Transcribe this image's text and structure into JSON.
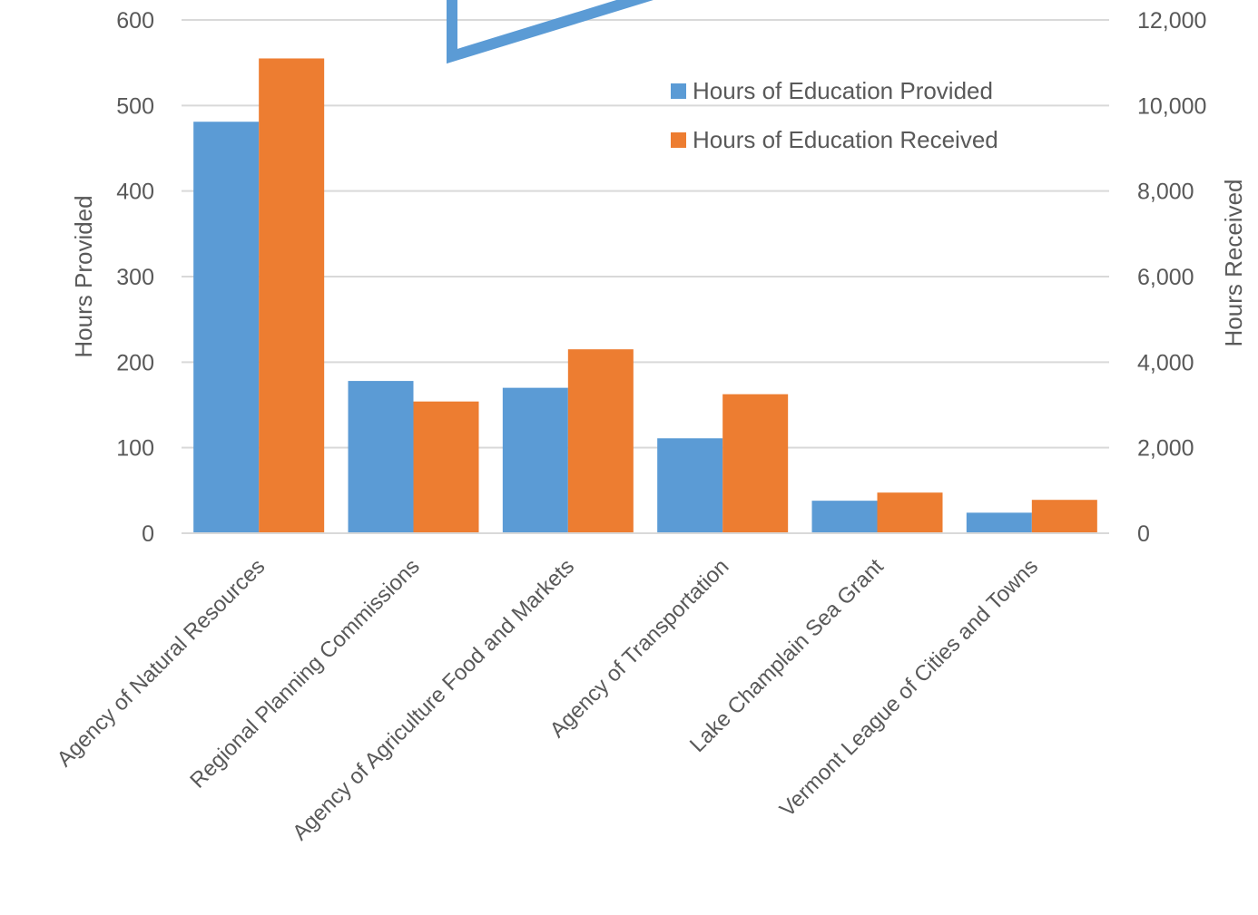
{
  "chart_data": {
    "type": "bar",
    "categories": [
      "Agency of Natural Resources",
      "Regional Planning Commissions",
      "Agency of Agriculture Food and Markets",
      "Agency of Transportation",
      "Lake Champlain Sea Grant",
      "Vermont League of Cities and Towns"
    ],
    "series": [
      {
        "name": "Hours of Education Provided",
        "axis": "left",
        "color": "#5B9BD5",
        "values": [
          481,
          178,
          170,
          111,
          38,
          24
        ]
      },
      {
        "name": "Hours of Education Received",
        "axis": "right",
        "color": "#ED7D31",
        "values": [
          11100,
          3080,
          4300,
          3250,
          950,
          780
        ]
      }
    ],
    "ylabel_left": "Hours Provided",
    "ylabel_right": "Hours Received",
    "ylim_left": [
      0,
      600
    ],
    "ylim_right": [
      0,
      12000
    ],
    "yticks_left": [
      "0",
      "100",
      "200",
      "300",
      "400",
      "500",
      "600"
    ],
    "yticks_right": [
      "0",
      "2,000",
      "4,000",
      "6,000",
      "8,000",
      "10,000",
      "12,000"
    ],
    "grid": true,
    "legend_position": "top-right",
    "annotation_color": "#5B9BD5"
  }
}
